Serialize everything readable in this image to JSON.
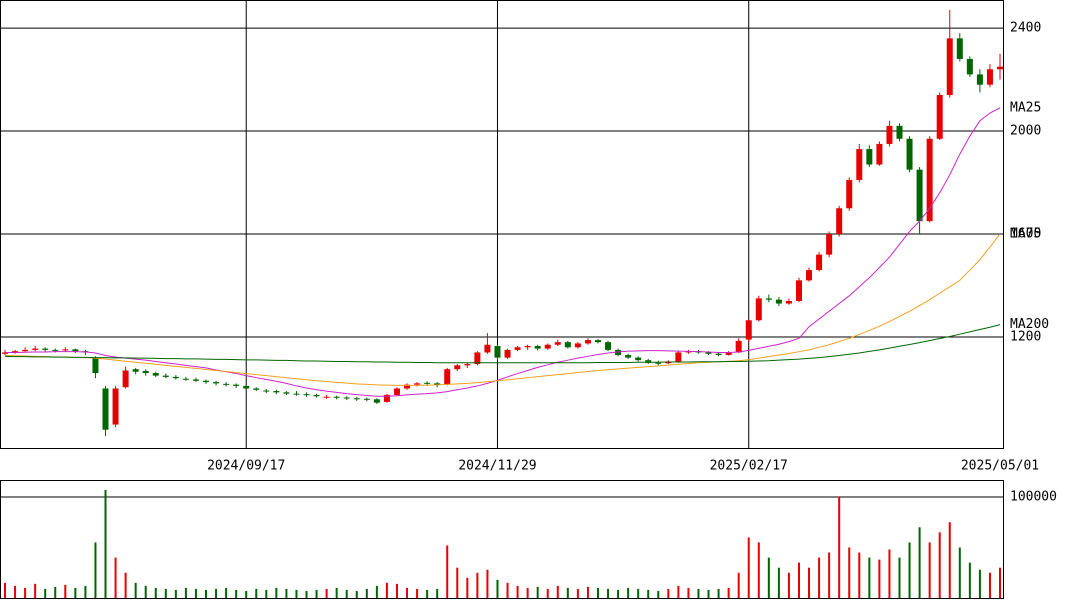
{
  "chart_data": {
    "type": "candlestick",
    "up_color": "#e60000",
    "down_color": "#006600",
    "categories": [
      null,
      null,
      null,
      null,
      null,
      null,
      null,
      null,
      null,
      null,
      null,
      null,
      null,
      null,
      null,
      null,
      null,
      null,
      null,
      null,
      null,
      null,
      null,
      null,
      "2024/09/17",
      null,
      null,
      null,
      null,
      null,
      null,
      null,
      null,
      null,
      null,
      null,
      null,
      null,
      null,
      null,
      null,
      null,
      null,
      null,
      null,
      null,
      null,
      null,
      null,
      "2024/11/29",
      null,
      null,
      null,
      null,
      null,
      null,
      null,
      null,
      null,
      null,
      null,
      null,
      null,
      null,
      null,
      null,
      null,
      null,
      null,
      null,
      null,
      null,
      null,
      null,
      "2025/02/17",
      null,
      null,
      null,
      null,
      null,
      null,
      null,
      null,
      null,
      null,
      null,
      null,
      null,
      null,
      null,
      null,
      null,
      null,
      null,
      null,
      null,
      null,
      null,
      null,
      "2025/05/01"
    ],
    "ohlc": [
      [
        1135,
        1150,
        1130,
        1140
      ],
      [
        1140,
        1150,
        1135,
        1145
      ],
      [
        1145,
        1160,
        1140,
        1150
      ],
      [
        1150,
        1165,
        1145,
        1155
      ],
      [
        1155,
        1160,
        1140,
        1150
      ],
      [
        1150,
        1155,
        1140,
        1148
      ],
      [
        1148,
        1160,
        1145,
        1152
      ],
      [
        1152,
        1155,
        1138,
        1145
      ],
      [
        1145,
        1150,
        1130,
        1140
      ],
      [
        1120,
        1125,
        1040,
        1060
      ],
      [
        1000,
        1010,
        815,
        840
      ],
      [
        860,
        1010,
        850,
        1000
      ],
      [
        1005,
        1085,
        1000,
        1070
      ],
      [
        1075,
        1080,
        1055,
        1065
      ],
      [
        1068,
        1075,
        1050,
        1060
      ],
      [
        1060,
        1065,
        1045,
        1050
      ],
      [
        1050,
        1058,
        1040,
        1045
      ],
      [
        1045,
        1052,
        1035,
        1040
      ],
      [
        1038,
        1045,
        1030,
        1035
      ],
      [
        1035,
        1042,
        1025,
        1030
      ],
      [
        1030,
        1035,
        1018,
        1025
      ],
      [
        1025,
        1030,
        1012,
        1020
      ],
      [
        1018,
        1025,
        1008,
        1015
      ],
      [
        1015,
        1020,
        1002,
        1010
      ],
      [
        1010,
        1015,
        995,
        1000
      ],
      [
        1000,
        1005,
        990,
        995
      ],
      [
        992,
        998,
        982,
        990
      ],
      [
        990,
        995,
        978,
        985
      ],
      [
        985,
        990,
        975,
        980
      ],
      [
        980,
        990,
        972,
        978
      ],
      [
        978,
        985,
        968,
        975
      ],
      [
        975,
        980,
        965,
        970
      ],
      [
        968,
        975,
        960,
        968
      ],
      [
        968,
        972,
        958,
        965
      ],
      [
        965,
        970,
        955,
        962
      ],
      [
        962,
        968,
        952,
        960
      ],
      [
        960,
        965,
        950,
        958
      ],
      [
        958,
        962,
        940,
        945
      ],
      [
        948,
        980,
        945,
        975
      ],
      [
        975,
        1005,
        970,
        1000
      ],
      [
        1000,
        1020,
        995,
        1015
      ],
      [
        1015,
        1025,
        1008,
        1020
      ],
      [
        1022,
        1028,
        1010,
        1020
      ],
      [
        1020,
        1025,
        1005,
        1015
      ],
      [
        1015,
        1080,
        1012,
        1075
      ],
      [
        1075,
        1095,
        1068,
        1090
      ],
      [
        1090,
        1100,
        1080,
        1095
      ],
      [
        1095,
        1145,
        1090,
        1140
      ],
      [
        1140,
        1215,
        1135,
        1170
      ],
      [
        1165,
        1170,
        1110,
        1120
      ],
      [
        1120,
        1155,
        1115,
        1150
      ],
      [
        1150,
        1165,
        1145,
        1160
      ],
      [
        1160,
        1170,
        1150,
        1165
      ],
      [
        1165,
        1170,
        1148,
        1155
      ],
      [
        1155,
        1175,
        1150,
        1170
      ],
      [
        1170,
        1190,
        1165,
        1180
      ],
      [
        1180,
        1185,
        1155,
        1160
      ],
      [
        1160,
        1180,
        1155,
        1175
      ],
      [
        1175,
        1195,
        1170,
        1188
      ],
      [
        1188,
        1192,
        1175,
        1180
      ],
      [
        1180,
        1185,
        1145,
        1150
      ],
      [
        1150,
        1155,
        1125,
        1130
      ],
      [
        1130,
        1135,
        1115,
        1120
      ],
      [
        1120,
        1125,
        1105,
        1110
      ],
      [
        1110,
        1115,
        1095,
        1100
      ],
      [
        1100,
        1108,
        1090,
        1098
      ],
      [
        1098,
        1110,
        1095,
        1105
      ],
      [
        1105,
        1145,
        1100,
        1140
      ],
      [
        1140,
        1150,
        1135,
        1145
      ],
      [
        1145,
        1150,
        1135,
        1140
      ],
      [
        1140,
        1145,
        1130,
        1135
      ],
      [
        1135,
        1140,
        1125,
        1130
      ],
      [
        1130,
        1145,
        1128,
        1140
      ],
      [
        1140,
        1195,
        1138,
        1185
      ],
      [
        1190,
        1270,
        1180,
        1265
      ],
      [
        1265,
        1360,
        1260,
        1350
      ],
      [
        1350,
        1365,
        1335,
        1345
      ],
      [
        1345,
        1355,
        1320,
        1330
      ],
      [
        1330,
        1350,
        1325,
        1340
      ],
      [
        1340,
        1430,
        1335,
        1420
      ],
      [
        1420,
        1470,
        1415,
        1460
      ],
      [
        1460,
        1530,
        1455,
        1520
      ],
      [
        1520,
        1610,
        1510,
        1600
      ],
      [
        1600,
        1710,
        1590,
        1700
      ],
      [
        1700,
        1820,
        1690,
        1810
      ],
      [
        1810,
        1950,
        1800,
        1930
      ],
      [
        1930,
        1945,
        1860,
        1870
      ],
      [
        1870,
        1960,
        1865,
        1950
      ],
      [
        1950,
        2040,
        1940,
        2020
      ],
      [
        2020,
        2030,
        1960,
        1970
      ],
      [
        1970,
        1980,
        1840,
        1850
      ],
      [
        1850,
        1860,
        1600,
        1650
      ],
      [
        1650,
        1980,
        1645,
        1970
      ],
      [
        1970,
        2150,
        1965,
        2140
      ],
      [
        2140,
        2470,
        2130,
        2360
      ],
      [
        2360,
        2380,
        2270,
        2280
      ],
      [
        2280,
        2290,
        2210,
        2220
      ],
      [
        2220,
        2240,
        2150,
        2180
      ],
      [
        2180,
        2260,
        2170,
        2240
      ],
      [
        2240,
        2300,
        2200,
        2250
      ]
    ],
    "moving_averages": [
      {
        "name": "MA25",
        "color": "#cc22cc",
        "values": [
          1140,
          1140,
          1141,
          1142,
          1142,
          1143,
          1143,
          1143,
          1142,
          1138,
          1128,
          1122,
          1118,
          1114,
          1110,
          1105,
          1100,
          1095,
          1090,
          1085,
          1080,
          1072,
          1065,
          1058,
          1050,
          1042,
          1035,
          1028,
          1020,
          1010,
          1002,
          995,
          990,
          985,
          980,
          976,
          973,
          970,
          970,
          972,
          975,
          978,
          980,
          983,
          988,
          995,
          1002,
          1010,
          1020,
          1032,
          1045,
          1058,
          1070,
          1082,
          1092,
          1102,
          1110,
          1118,
          1125,
          1132,
          1138,
          1142,
          1145,
          1146,
          1147,
          1147,
          1146,
          1145,
          1144,
          1143,
          1142,
          1140,
          1140,
          1142,
          1148,
          1156,
          1164,
          1172,
          1182,
          1195,
          1240,
          1270,
          1300,
          1330,
          1360,
          1395,
          1430,
          1470,
          1510,
          1560,
          1610,
          1650,
          1700,
          1760,
          1830,
          1910,
          1980,
          2040,
          2070,
          2090
        ]
      },
      {
        "name": "MA75",
        "color": "#f0a020",
        "values": [
          1128,
          1127,
          1126,
          1125,
          1124,
          1123,
          1122,
          1121,
          1120,
          1118,
          1114,
          1110,
          1106,
          1102,
          1098,
          1094,
          1090,
          1086,
          1082,
          1078,
          1074,
          1070,
          1066,
          1062,
          1058,
          1054,
          1050,
          1046,
          1042,
          1038,
          1034,
          1030,
          1027,
          1024,
          1021,
          1018,
          1016,
          1014,
          1013,
          1012,
          1012,
          1012,
          1013,
          1014,
          1016,
          1018,
          1020,
          1023,
          1026,
          1030,
          1034,
          1038,
          1042,
          1046,
          1050,
          1054,
          1058,
          1062,
          1066,
          1070,
          1073,
          1076,
          1079,
          1082,
          1085,
          1088,
          1091,
          1094,
          1097,
          1100,
          1102,
          1104,
          1106,
          1108,
          1112,
          1118,
          1124,
          1130,
          1136,
          1143,
          1150,
          1160,
          1170,
          1182,
          1195,
          1210,
          1225,
          1242,
          1260,
          1280,
          1300,
          1322,
          1345,
          1370,
          1395,
          1420,
          1460,
          1500,
          1550,
          1600
        ]
      },
      {
        "name": "MA200",
        "color": "#006600",
        "values": [
          1125,
          1124,
          1124,
          1123,
          1123,
          1122,
          1122,
          1121,
          1121,
          1120,
          1120,
          1119,
          1119,
          1118,
          1118,
          1117,
          1116,
          1116,
          1115,
          1115,
          1114,
          1113,
          1113,
          1112,
          1111,
          1111,
          1110,
          1109,
          1109,
          1108,
          1107,
          1107,
          1106,
          1105,
          1105,
          1104,
          1104,
          1103,
          1103,
          1102,
          1102,
          1101,
          1101,
          1100,
          1100,
          1100,
          1100,
          1100,
          1100,
          1100,
          1100,
          1100,
          1100,
          1100,
          1100,
          1100,
          1100,
          1100,
          1100,
          1101,
          1101,
          1101,
          1101,
          1102,
          1102,
          1102,
          1103,
          1103,
          1103,
          1104,
          1104,
          1104,
          1105,
          1105,
          1106,
          1107,
          1108,
          1110,
          1112,
          1114,
          1117,
          1120,
          1124,
          1128,
          1133,
          1138,
          1144,
          1150,
          1157,
          1164,
          1171,
          1178,
          1186,
          1194,
          1202,
          1211,
          1220,
          1229,
          1238,
          1248
        ]
      }
    ],
    "ylim": [
      765,
      2509
    ],
    "yticks": [
      1200,
      1600,
      2000,
      2400
    ],
    "grid": true,
    "volume": [
      15000,
      12000,
      10000,
      14000,
      9000,
      11000,
      13000,
      10000,
      12000,
      55000,
      107000,
      40000,
      25000,
      15000,
      12000,
      10000,
      9000,
      8000,
      10000,
      9000,
      8000,
      9000,
      10000,
      8000,
      7000,
      9000,
      8000,
      10000,
      9000,
      8000,
      7000,
      8000,
      9000,
      10000,
      8000,
      7000,
      9000,
      12000,
      15000,
      14000,
      10000,
      9000,
      8000,
      9000,
      52000,
      30000,
      20000,
      25000,
      28000,
      18000,
      15000,
      12000,
      10000,
      11000,
      9000,
      12000,
      10000,
      9000,
      11000,
      10000,
      9000,
      8000,
      10000,
      9000,
      8000,
      7000,
      9000,
      12000,
      10000,
      9000,
      8000,
      9000,
      10000,
      25000,
      60000,
      55000,
      40000,
      30000,
      25000,
      35000,
      30000,
      40000,
      45000,
      100000,
      50000,
      45000,
      40000,
      38000,
      48000,
      40000,
      55000,
      70000,
      55000,
      65000,
      75000,
      50000,
      35000,
      28000,
      25000,
      30000
    ],
    "volume_ylim": [
      0,
      116800
    ],
    "volume_yticks": [
      100000
    ]
  }
}
